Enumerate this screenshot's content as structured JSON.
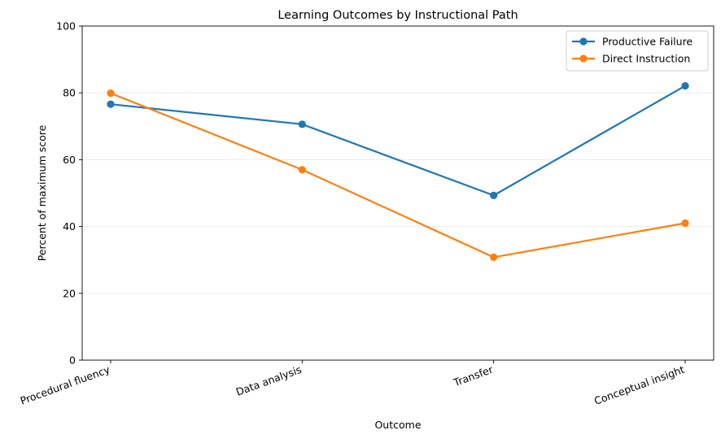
{
  "chart_data": {
    "type": "line",
    "title": "Learning Outcomes by Instructional Path",
    "xlabel": "Outcome",
    "ylabel": "Percent of maximum score",
    "categories": [
      "Procedural fluency",
      "Data analysis",
      "Transfer",
      "Conceptual insight"
    ],
    "ylim": [
      0,
      100
    ],
    "yticks": [
      0,
      20,
      40,
      60,
      80,
      100
    ],
    "grid": "y",
    "legend_position": "top-right",
    "series": [
      {
        "name": "Productive Failure",
        "color": "#1f77b4",
        "values": [
          76.6,
          70.6,
          49.3,
          82.1
        ]
      },
      {
        "name": "Direct Instruction",
        "color": "#ff7f0e",
        "values": [
          79.9,
          57.0,
          30.8,
          41.0
        ]
      }
    ]
  }
}
